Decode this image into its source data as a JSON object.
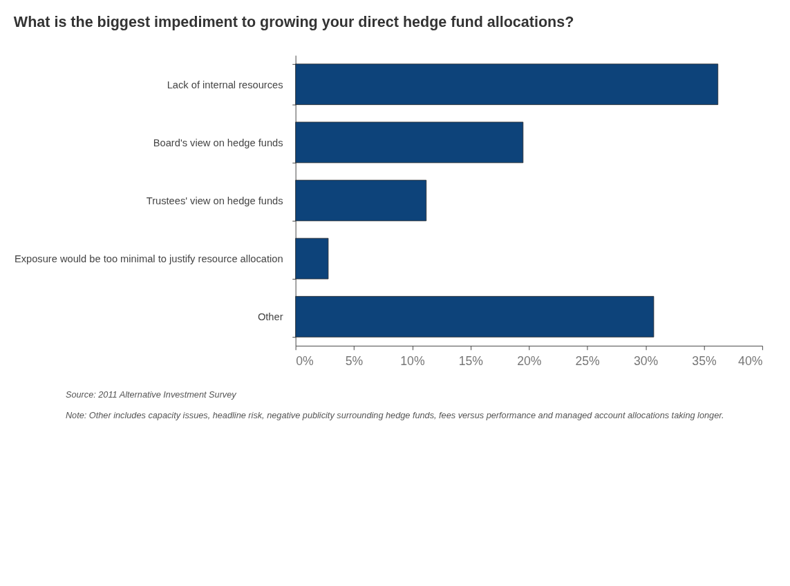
{
  "chart_data": {
    "type": "bar",
    "orientation": "horizontal",
    "title": "What is the biggest impediment to growing your direct hedge fund allocations?",
    "categories": [
      "Lack of internal resources",
      "Board's view on hedge funds",
      "Trustees' view on hedge funds",
      "Exposure would be too minimal to justify resource allocation",
      "Other"
    ],
    "values": [
      36.2,
      19.5,
      11.2,
      2.8,
      30.7
    ],
    "color": "#0d437a",
    "xlim": [
      0,
      40
    ],
    "xticks": [
      {
        "value": 0,
        "label": "0%"
      },
      {
        "value": 5,
        "label": "5%"
      },
      {
        "value": 10,
        "label": "10%"
      },
      {
        "value": 15,
        "label": "15%"
      },
      {
        "value": 20,
        "label": "20%"
      },
      {
        "value": 25,
        "label": "25%"
      },
      {
        "value": 30,
        "label": "30%"
      },
      {
        "value": 35,
        "label": "35%"
      },
      {
        "value": 40,
        "label": "40%"
      }
    ],
    "grid": false,
    "annotations": [
      "Source: 2011 Alternative Investment Survey",
      "Note: Other includes capacity issues, headline risk, negative publicity surrounding hedge funds, fees versus performance and managed account allocations taking longer."
    ]
  }
}
